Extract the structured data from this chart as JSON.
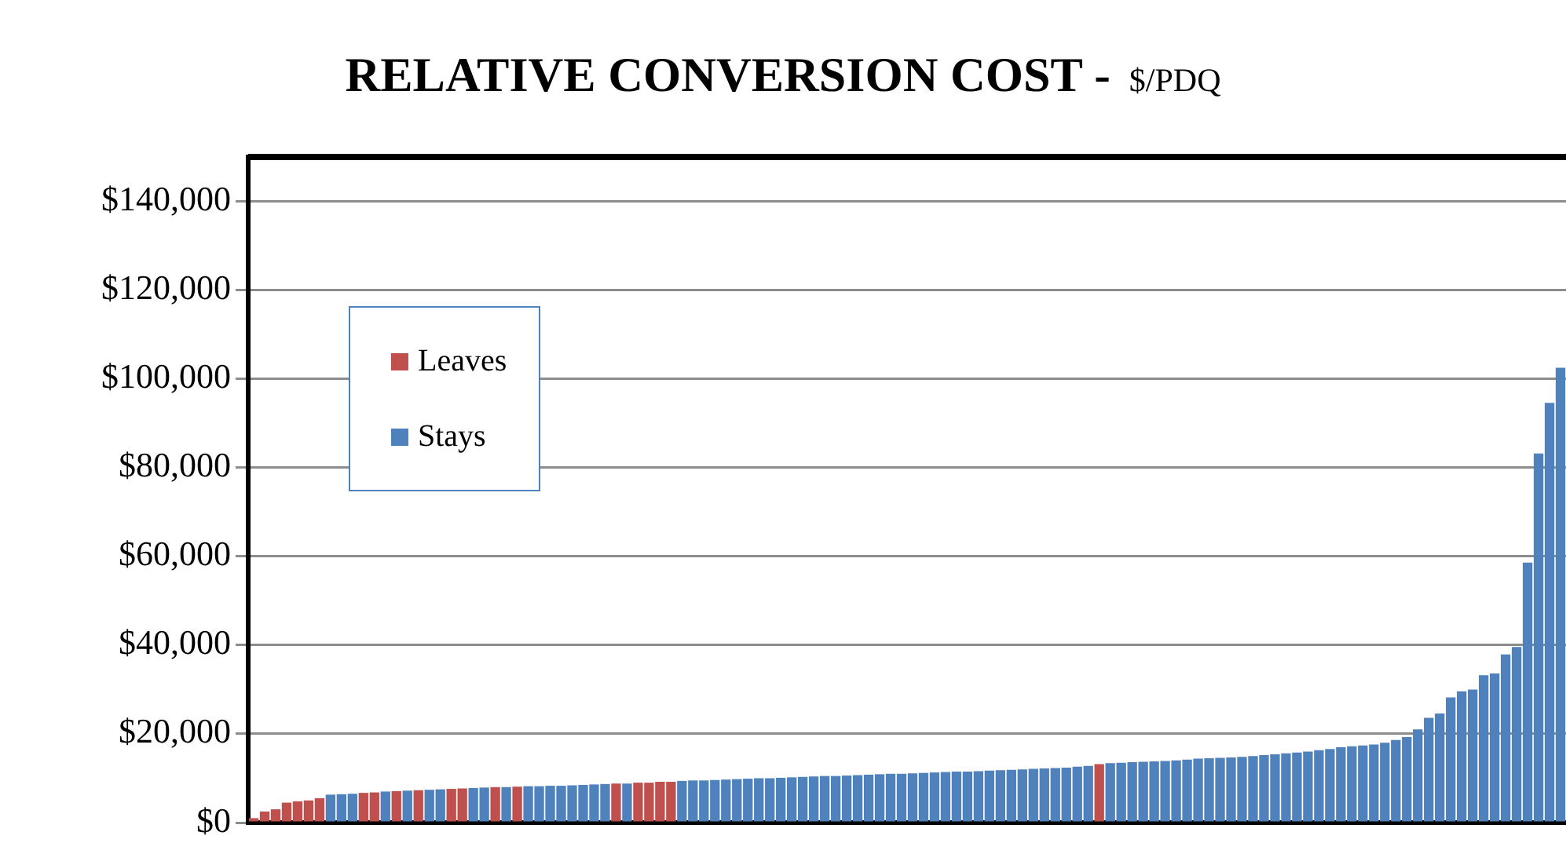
{
  "chart_data": {
    "type": "bar",
    "title": "RELATIVE CONVERSION COST  -",
    "subtitle": "$/PDQ",
    "categories": [
      null,
      null,
      null,
      null,
      null,
      null,
      null,
      null,
      null,
      null,
      null,
      null,
      null,
      null,
      null,
      null,
      null,
      null,
      null,
      null,
      null,
      null,
      null,
      null,
      null,
      null,
      null,
      null,
      null,
      null,
      null,
      null,
      null,
      null,
      null,
      null,
      null,
      null,
      null,
      null,
      null,
      null,
      null,
      null,
      null,
      null,
      null,
      null,
      null,
      null,
      null,
      null,
      null,
      null,
      null,
      null,
      null,
      null,
      null,
      null,
      null,
      null,
      null,
      null,
      null,
      null,
      null,
      null,
      null,
      null,
      null,
      null,
      null,
      null,
      null,
      null,
      null,
      null,
      null,
      null,
      null,
      null,
      null,
      null,
      null,
      null,
      null,
      null,
      null,
      null,
      null,
      null,
      null,
      null,
      null,
      null,
      null,
      null,
      null,
      null,
      null,
      null,
      null,
      null,
      null,
      null,
      null,
      null,
      null,
      null,
      null,
      null,
      null,
      null,
      null,
      null,
      null,
      null,
      null,
      null
    ],
    "series": [
      {
        "name": "Leaves",
        "color": "#c0504d",
        "values": [
          1000,
          2500,
          3000,
          4500,
          4800,
          5000,
          5500,
          null,
          null,
          null,
          6700,
          6800,
          null,
          7100,
          null,
          7300,
          null,
          null,
          7600,
          7700,
          null,
          null,
          8000,
          null,
          8100,
          null,
          null,
          null,
          null,
          null,
          null,
          null,
          null,
          8800,
          null,
          9000,
          9000,
          9200,
          9200,
          null,
          null,
          null,
          null,
          null,
          null,
          null,
          null,
          null,
          null,
          null,
          null,
          null,
          null,
          null,
          null,
          null,
          null,
          null,
          null,
          null,
          null,
          null,
          null,
          null,
          null,
          null,
          null,
          null,
          null,
          null,
          null,
          null,
          null,
          null,
          null,
          null,
          null,
          13200,
          null,
          null,
          null,
          null,
          null,
          null,
          null,
          null,
          null,
          null,
          null,
          null,
          null,
          null,
          null,
          null,
          null,
          null,
          null,
          null,
          null,
          null,
          null,
          null,
          null,
          null,
          null,
          null,
          null,
          null,
          null,
          null,
          null,
          null,
          null,
          null,
          null,
          null,
          null,
          null,
          null,
          null
        ]
      },
      {
        "name": "Stays",
        "color": "#4f81bd",
        "values": [
          null,
          null,
          null,
          null,
          null,
          null,
          null,
          6300,
          6400,
          6500,
          null,
          null,
          7000,
          null,
          7200,
          null,
          7400,
          7500,
          null,
          null,
          7800,
          7900,
          null,
          8000,
          null,
          8200,
          8200,
          8300,
          8300,
          8400,
          8500,
          8600,
          8700,
          null,
          8800,
          null,
          null,
          null,
          null,
          9400,
          9500,
          9500,
          9600,
          9700,
          9800,
          9900,
          10000,
          10000,
          10100,
          10200,
          10300,
          10400,
          10500,
          10500,
          10600,
          10700,
          10800,
          10900,
          11000,
          11000,
          11100,
          11200,
          11300,
          11400,
          11500,
          11500,
          11600,
          11700,
          11800,
          11900,
          12000,
          12100,
          12200,
          12300,
          12400,
          12600,
          12800,
          null,
          13400,
          13500,
          13600,
          13700,
          13800,
          13900,
          14000,
          14200,
          14400,
          14500,
          14600,
          14700,
          14800,
          15000,
          15200,
          15400,
          15600,
          15800,
          16000,
          16300,
          16600,
          17000,
          17200,
          17400,
          17600,
          18000,
          18600,
          19300,
          21000,
          23600,
          24600,
          28200,
          29600,
          30000,
          33200,
          33600,
          37900,
          39600,
          58600,
          83200,
          94600,
          102500
        ]
      }
    ],
    "stacked": true,
    "ylim": [
      0,
      150000
    ],
    "yticks": [
      {
        "value": 0,
        "label": "$0"
      },
      {
        "value": 20000,
        "label": "$20,000"
      },
      {
        "value": 40000,
        "label": "$40,000"
      },
      {
        "value": 60000,
        "label": "$60,000"
      },
      {
        "value": 80000,
        "label": "$80,000"
      },
      {
        "value": 100000,
        "label": "$100,000"
      },
      {
        "value": 120000,
        "label": "$120,000"
      },
      {
        "value": 140000,
        "label": "$140,000"
      }
    ],
    "grid": "y",
    "legend": "top left"
  }
}
